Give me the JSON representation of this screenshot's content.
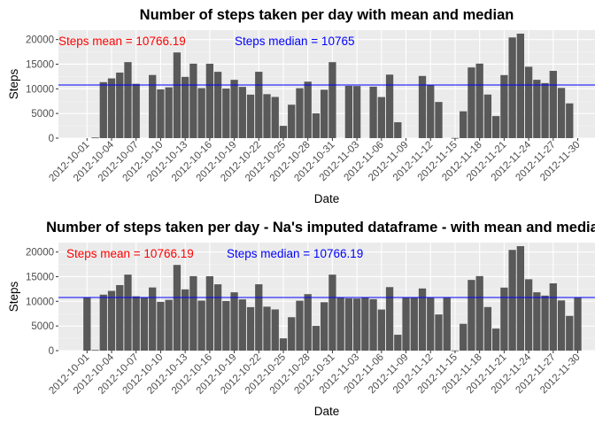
{
  "chart_data": [
    {
      "type": "bar",
      "title": "Number of steps taken per day with mean and median",
      "xlabel": "Date",
      "ylabel": "Steps",
      "ylim": [
        0,
        21194
      ],
      "yticks": [
        0,
        5000,
        10000,
        15000,
        20000
      ],
      "grid": true,
      "background": "#ebebeb",
      "bar_color": "#595959",
      "hline": {
        "value": 10766.19,
        "color": "#0000ff"
      },
      "annotations": [
        {
          "text": "Steps mean = 10766.19",
          "color": "#ff0000"
        },
        {
          "text": "Steps median = 10765",
          "color": "#0000ff"
        }
      ],
      "tick_labels": [
        "2012-10-01",
        "2012-10-04",
        "2012-10-07",
        "2012-10-10",
        "2012-10-13",
        "2012-10-16",
        "2012-10-19",
        "2012-10-22",
        "2012-10-25",
        "2012-10-28",
        "2012-10-31",
        "2012-11-03",
        "2012-11-06",
        "2012-11-09",
        "2012-11-12",
        "2012-11-15",
        "2012-11-18",
        "2012-11-21",
        "2012-11-24",
        "2012-11-27",
        "2012-11-30"
      ],
      "categories": [
        "2012-10-01",
        "2012-10-02",
        "2012-10-03",
        "2012-10-04",
        "2012-10-05",
        "2012-10-06",
        "2012-10-07",
        "2012-10-08",
        "2012-10-09",
        "2012-10-10",
        "2012-10-11",
        "2012-10-12",
        "2012-10-13",
        "2012-10-14",
        "2012-10-15",
        "2012-10-16",
        "2012-10-17",
        "2012-10-18",
        "2012-10-19",
        "2012-10-20",
        "2012-10-21",
        "2012-10-22",
        "2012-10-23",
        "2012-10-24",
        "2012-10-25",
        "2012-10-26",
        "2012-10-27",
        "2012-10-28",
        "2012-10-29",
        "2012-10-30",
        "2012-10-31",
        "2012-11-01",
        "2012-11-02",
        "2012-11-03",
        "2012-11-04",
        "2012-11-05",
        "2012-11-06",
        "2012-11-07",
        "2012-11-08",
        "2012-11-09",
        "2012-11-10",
        "2012-11-11",
        "2012-11-12",
        "2012-11-13",
        "2012-11-14",
        "2012-11-15",
        "2012-11-16",
        "2012-11-17",
        "2012-11-18",
        "2012-11-19",
        "2012-11-20",
        "2012-11-21",
        "2012-11-22",
        "2012-11-23",
        "2012-11-24",
        "2012-11-25",
        "2012-11-26",
        "2012-11-27",
        "2012-11-28",
        "2012-11-29",
        "2012-11-30"
      ],
      "values": [
        null,
        126,
        11352,
        12116,
        13294,
        15420,
        11015,
        null,
        12811,
        9900,
        10304,
        17382,
        12426,
        15098,
        10139,
        15084,
        13452,
        10056,
        11829,
        10395,
        8821,
        13460,
        8918,
        8355,
        2492,
        6778,
        10119,
        11458,
        5018,
        9819,
        15414,
        null,
        10600,
        10571,
        null,
        10439,
        8334,
        12883,
        3219,
        null,
        null,
        12608,
        10765,
        7336,
        null,
        41,
        5441,
        14339,
        15110,
        8841,
        4472,
        12787,
        20427,
        21194,
        14478,
        11834,
        11162,
        13646,
        10183,
        7047,
        null
      ]
    },
    {
      "type": "bar",
      "title": "Number of steps taken per day - Na's imputed dataframe - with mean and median",
      "xlabel": "Date",
      "ylabel": "Steps",
      "ylim": [
        0,
        21194
      ],
      "yticks": [
        0,
        5000,
        10000,
        15000,
        20000
      ],
      "grid": true,
      "background": "#ebebeb",
      "bar_color": "#595959",
      "hline": {
        "value": 10766.19,
        "color": "#0000ff"
      },
      "annotations": [
        {
          "text": "Steps mean = 10766.19",
          "color": "#ff0000"
        },
        {
          "text": "Steps median = 10766.19",
          "color": "#0000ff"
        }
      ],
      "tick_labels": [
        "2012-10-01",
        "2012-10-04",
        "2012-10-07",
        "2012-10-10",
        "2012-10-13",
        "2012-10-16",
        "2012-10-19",
        "2012-10-22",
        "2012-10-25",
        "2012-10-28",
        "2012-10-31",
        "2012-11-03",
        "2012-11-06",
        "2012-11-09",
        "2012-11-12",
        "2012-11-15",
        "2012-11-18",
        "2012-11-21",
        "2012-11-24",
        "2012-11-27",
        "2012-11-30"
      ],
      "categories": [
        "2012-10-01",
        "2012-10-02",
        "2012-10-03",
        "2012-10-04",
        "2012-10-05",
        "2012-10-06",
        "2012-10-07",
        "2012-10-08",
        "2012-10-09",
        "2012-10-10",
        "2012-10-11",
        "2012-10-12",
        "2012-10-13",
        "2012-10-14",
        "2012-10-15",
        "2012-10-16",
        "2012-10-17",
        "2012-10-18",
        "2012-10-19",
        "2012-10-20",
        "2012-10-21",
        "2012-10-22",
        "2012-10-23",
        "2012-10-24",
        "2012-10-25",
        "2012-10-26",
        "2012-10-27",
        "2012-10-28",
        "2012-10-29",
        "2012-10-30",
        "2012-10-31",
        "2012-11-01",
        "2012-11-02",
        "2012-11-03",
        "2012-11-04",
        "2012-11-05",
        "2012-11-06",
        "2012-11-07",
        "2012-11-08",
        "2012-11-09",
        "2012-11-10",
        "2012-11-11",
        "2012-11-12",
        "2012-11-13",
        "2012-11-14",
        "2012-11-15",
        "2012-11-16",
        "2012-11-17",
        "2012-11-18",
        "2012-11-19",
        "2012-11-20",
        "2012-11-21",
        "2012-11-22",
        "2012-11-23",
        "2012-11-24",
        "2012-11-25",
        "2012-11-26",
        "2012-11-27",
        "2012-11-28",
        "2012-11-29",
        "2012-11-30"
      ],
      "values": [
        10766,
        126,
        11352,
        12116,
        13294,
        15420,
        11015,
        10766,
        12811,
        9900,
        10304,
        17382,
        12426,
        15098,
        10139,
        15084,
        13452,
        10056,
        11829,
        10395,
        8821,
        13460,
        8918,
        8355,
        2492,
        6778,
        10119,
        11458,
        5018,
        9819,
        15414,
        10766,
        10600,
        10571,
        10766,
        10439,
        8334,
        12883,
        3219,
        10766,
        10766,
        12608,
        10765,
        7336,
        10766,
        41,
        5441,
        14339,
        15110,
        8841,
        4472,
        12787,
        20427,
        21194,
        14478,
        11834,
        11162,
        13646,
        10183,
        7047,
        10766
      ]
    }
  ]
}
